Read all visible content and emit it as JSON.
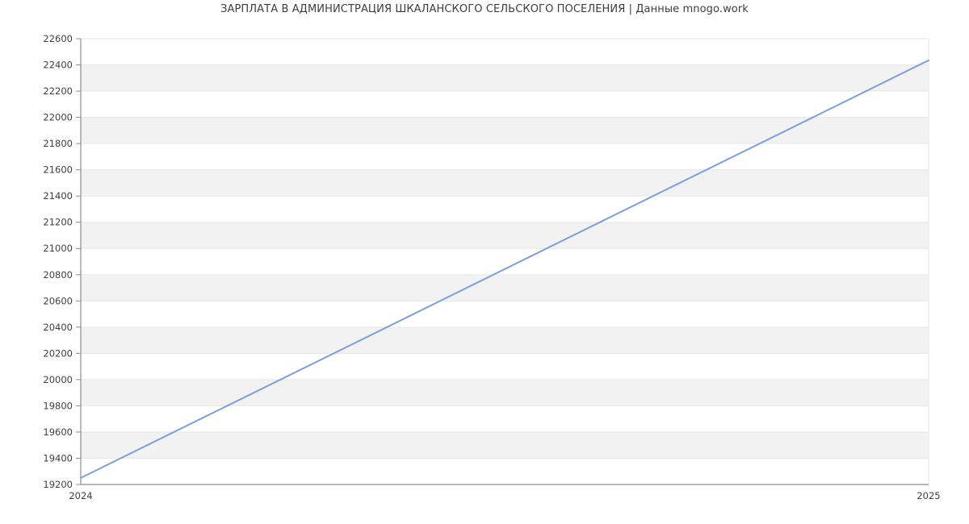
{
  "title": "ЗАРПЛАТА В АДМИНИСТРАЦИЯ ШКАЛАНСКОГО СЕЛЬСКОГО ПОСЕЛЕНИЯ | Данные mnogo.work",
  "colors": {
    "line": "#7a9fe1",
    "band": "#f2f2f2",
    "grid": "#e7e7e7",
    "axis": "#8c8c8c",
    "text": "#3f3f3f",
    "background": "#ffffff"
  },
  "chart_data": {
    "type": "line",
    "title": "ЗАРПЛАТА В АДМИНИСТРАЦИЯ ШКАЛАНСКОГО СЕЛЬСКОГО ПОСЕЛЕНИЯ | Данные mnogo.work",
    "x": [
      2024,
      2025
    ],
    "x_tick_labels": [
      "2024",
      "2025"
    ],
    "series": [
      {
        "values": [
          19250,
          22435
        ]
      }
    ],
    "xlabel": "",
    "ylabel": "",
    "ylim": [
      19200,
      22600
    ],
    "ytick_step": 200,
    "y_tick_labels": [
      "19200",
      "19400",
      "19600",
      "19800",
      "20000",
      "20200",
      "20400",
      "20600",
      "20800",
      "21000",
      "21200",
      "21400",
      "21600",
      "21800",
      "22000",
      "22200",
      "22400",
      "22600"
    ],
    "grid": "horizontal",
    "background_bands": "alternating-horizontal",
    "legend_position": "none"
  }
}
